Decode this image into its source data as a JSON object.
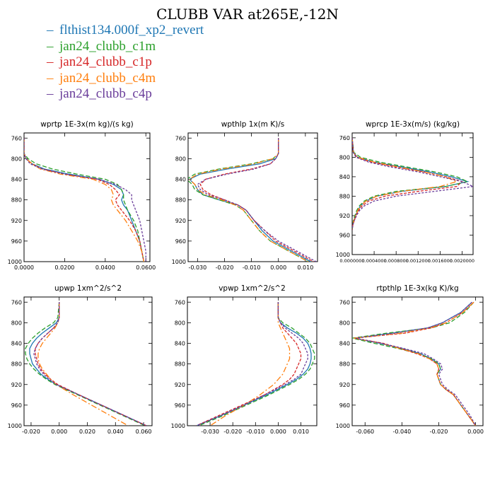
{
  "title": "CLUBB VAR at265E,-12N",
  "legend": [
    {
      "label": "flthist134.000f_xp2_revert",
      "color": "#1f77b4"
    },
    {
      "label": "jan24_clubb_c1m",
      "color": "#2ca02c"
    },
    {
      "label": "jan24_clubb_c1p",
      "color": "#d62728"
    },
    {
      "label": "jan24_clubb_c4m",
      "color": "#ff7f0e"
    },
    {
      "label": "jan24_clubb_c4p",
      "color": "#6a3d9a"
    }
  ],
  "chart_data": [
    {
      "type": "line",
      "title": "wprtp  1E-3x(m kg)/(s kg)",
      "xlim": [
        0,
        0.062
      ],
      "ylim": [
        1000,
        750
      ],
      "xticks": [
        0,
        0.02,
        0.04,
        0.06
      ],
      "xtick_labels": [
        "0.0000",
        "0.0200",
        "0.0400",
        "0.0600"
      ],
      "yticks": [
        760,
        800,
        840,
        880,
        920,
        960,
        1000
      ],
      "ytick_labels": [
        "760",
        "800",
        "840",
        "880",
        "920",
        "960",
        "1000"
      ],
      "y": [
        760,
        790,
        800,
        810,
        820,
        830,
        840,
        850,
        860,
        870,
        880,
        890,
        900,
        920,
        940,
        960,
        980,
        1000
      ],
      "series": [
        {
          "name": "flthist134.000f_xp2_revert",
          "x": [
            0.0,
            0.0,
            0.001,
            0.004,
            0.01,
            0.022,
            0.037,
            0.044,
            0.048,
            0.049,
            0.048,
            0.049,
            0.051,
            0.053,
            0.055,
            0.057,
            0.058,
            0.059
          ]
        },
        {
          "name": "jan24_clubb_c1m",
          "x": [
            0.0,
            0.0,
            0.002,
            0.006,
            0.014,
            0.026,
            0.04,
            0.046,
            0.048,
            0.049,
            0.049,
            0.05,
            0.051,
            0.054,
            0.056,
            0.057,
            0.058,
            0.059
          ]
        },
        {
          "name": "jan24_clubb_c1p",
          "x": [
            0.0,
            0.0,
            0.001,
            0.004,
            0.009,
            0.02,
            0.036,
            0.042,
            0.045,
            0.047,
            0.045,
            0.046,
            0.048,
            0.052,
            0.055,
            0.057,
            0.058,
            0.059
          ]
        },
        {
          "name": "jan24_clubb_c4m",
          "x": [
            0.0,
            0.0,
            0.001,
            0.004,
            0.008,
            0.018,
            0.034,
            0.04,
            0.043,
            0.044,
            0.043,
            0.044,
            0.046,
            0.05,
            0.053,
            0.056,
            0.058,
            0.059
          ]
        },
        {
          "name": "jan24_clubb_c4p",
          "x": [
            0.0,
            0.0,
            0.001,
            0.003,
            0.009,
            0.02,
            0.037,
            0.045,
            0.05,
            0.053,
            0.053,
            0.054,
            0.055,
            0.057,
            0.058,
            0.059,
            0.06,
            0.06
          ]
        }
      ]
    },
    {
      "type": "line",
      "title": "wpthlp  1x(m K)/s",
      "xlim": [
        -0.0335,
        0.0145
      ],
      "ylim": [
        1000,
        750
      ],
      "xticks": [
        -0.03,
        -0.02,
        -0.01,
        0,
        0.01
      ],
      "xtick_labels": [
        "-0.030",
        "-0.020",
        "-0.010",
        "0.000",
        "0.010"
      ],
      "yticks": [
        760,
        800,
        840,
        880,
        920,
        960,
        1000
      ],
      "ytick_labels": [
        "760",
        "800",
        "840",
        "880",
        "920",
        "960",
        "1000"
      ],
      "y": [
        760,
        790,
        800,
        810,
        820,
        830,
        840,
        850,
        860,
        870,
        880,
        890,
        900,
        920,
        940,
        960,
        980,
        1000
      ],
      "series": [
        {
          "name": "flthist134.000f_xp2_revert",
          "x": [
            0.0,
            0.0,
            -0.001,
            -0.007,
            -0.019,
            -0.029,
            -0.033,
            -0.031,
            -0.03,
            -0.028,
            -0.022,
            -0.015,
            -0.012,
            -0.009,
            -0.006,
            -0.002,
            0.005,
            0.012
          ]
        },
        {
          "name": "jan24_clubb_c1m",
          "x": [
            0.0,
            0.0,
            -0.002,
            -0.01,
            -0.022,
            -0.031,
            -0.034,
            -0.032,
            -0.031,
            -0.028,
            -0.022,
            -0.016,
            -0.013,
            -0.01,
            -0.007,
            -0.003,
            0.004,
            0.011
          ]
        },
        {
          "name": "jan24_clubb_c1p",
          "x": [
            0.0,
            0.0,
            -0.001,
            -0.003,
            -0.01,
            -0.02,
            -0.027,
            -0.029,
            -0.028,
            -0.025,
            -0.02,
            -0.015,
            -0.012,
            -0.009,
            -0.005,
            -0.001,
            0.006,
            0.013
          ]
        },
        {
          "name": "jan24_clubb_c4m",
          "x": [
            0.0,
            0.0,
            -0.002,
            -0.009,
            -0.021,
            -0.03,
            -0.033,
            -0.031,
            -0.03,
            -0.027,
            -0.021,
            -0.016,
            -0.013,
            -0.01,
            -0.007,
            -0.003,
            0.004,
            0.011
          ]
        },
        {
          "name": "jan24_clubb_c4p",
          "x": [
            0.0,
            0.0,
            -0.001,
            -0.003,
            -0.009,
            -0.019,
            -0.027,
            -0.03,
            -0.029,
            -0.026,
            -0.02,
            -0.015,
            -0.012,
            -0.009,
            -0.005,
            0.0,
            0.007,
            0.014
          ]
        }
      ]
    },
    {
      "type": "line",
      "title": "wprcp  1E-3x(m/s) (kg/kg)",
      "xlim": [
        0,
        0.0022
      ],
      "ylim": [
        1000,
        750
      ],
      "xticks": [
        0,
        0.0004,
        0.0008,
        0.0012,
        0.0016,
        0.002
      ],
      "xtick_labels": [
        "0.0000000",
        "0.0004000",
        "0.0008000",
        "0.0012000",
        "0.0016000",
        "0.0020000"
      ],
      "yticks": [
        760,
        800,
        840,
        880,
        920,
        960,
        1000
      ],
      "ytick_labels": [
        "760",
        "800",
        "840",
        "880",
        "920",
        "960",
        "1000"
      ],
      "y": [
        760,
        790,
        800,
        810,
        820,
        830,
        840,
        850,
        860,
        870,
        880,
        890,
        900,
        910,
        920,
        930,
        940,
        950
      ],
      "series": [
        {
          "name": "flthist134.000f_xp2_revert",
          "x": [
            0.0,
            2e-05,
            0.0001,
            0.0004,
            0.0009,
            0.0014,
            0.0018,
            0.0021,
            0.0017,
            0.0009,
            0.00045,
            0.00025,
            0.00015,
            0.0001,
            6e-05,
            3e-05,
            1e-05,
            0.0
          ]
        },
        {
          "name": "jan24_clubb_c1m",
          "x": [
            0.0,
            3e-05,
            0.00015,
            0.0005,
            0.001,
            0.0015,
            0.0019,
            0.0021,
            0.0017,
            0.0008,
            0.0004,
            0.00022,
            0.00013,
            8e-05,
            5e-05,
            2e-05,
            1e-05,
            0.0
          ]
        },
        {
          "name": "jan24_clubb_c1p",
          "x": [
            0.0,
            2e-05,
            8e-05,
            0.00035,
            0.0008,
            0.0013,
            0.0017,
            0.002,
            0.0019,
            0.0012,
            0.0006,
            0.0003,
            0.00018,
            0.00011,
            7e-05,
            4e-05,
            1e-05,
            0.0
          ]
        },
        {
          "name": "jan24_clubb_c4m",
          "x": [
            0.0,
            2e-05,
            0.0001,
            0.0004,
            0.00085,
            0.0013,
            0.0017,
            0.0019,
            0.0016,
            0.0009,
            0.00045,
            0.00025,
            0.00015,
            0.0001,
            6e-05,
            3e-05,
            1e-05,
            0.0
          ]
        },
        {
          "name": "jan24_clubb_c4p",
          "x": [
            0.0,
            2e-05,
            7e-05,
            0.0003,
            0.0007,
            0.0012,
            0.0016,
            0.002,
            0.0022,
            0.0015,
            0.0008,
            0.0004,
            0.00022,
            0.00013,
            8e-05,
            4e-05,
            1e-05,
            0.0
          ]
        }
      ]
    },
    {
      "type": "line",
      "title": "upwp  1xm^2/s^2",
      "xlim": [
        -0.025,
        0.066
      ],
      "ylim": [
        1000,
        750
      ],
      "xticks": [
        -0.02,
        0,
        0.02,
        0.04,
        0.06
      ],
      "xtick_labels": [
        "-0.020",
        "0.000",
        "0.020",
        "0.040",
        "0.060"
      ],
      "yticks": [
        760,
        800,
        840,
        880,
        920,
        960,
        1000
      ],
      "ytick_labels": [
        "760",
        "800",
        "840",
        "880",
        "920",
        "960",
        "1000"
      ],
      "y": [
        760,
        790,
        800,
        810,
        820,
        830,
        840,
        850,
        860,
        870,
        880,
        890,
        900,
        910,
        920,
        940,
        960,
        980,
        1000
      ],
      "series": [
        {
          "name": "flthist134.000f_xp2_revert",
          "x": [
            0.0,
            0.0,
            -0.002,
            -0.007,
            -0.012,
            -0.016,
            -0.019,
            -0.021,
            -0.021,
            -0.02,
            -0.019,
            -0.016,
            -0.013,
            -0.008,
            -0.002,
            0.014,
            0.03,
            0.046,
            0.062
          ]
        },
        {
          "name": "jan24_clubb_c1m",
          "x": [
            0.0,
            -0.001,
            -0.004,
            -0.01,
            -0.015,
            -0.019,
            -0.022,
            -0.024,
            -0.024,
            -0.023,
            -0.021,
            -0.018,
            -0.014,
            -0.009,
            -0.003,
            0.013,
            0.029,
            0.045,
            0.061
          ]
        },
        {
          "name": "jan24_clubb_c1p",
          "x": [
            0.0,
            0.0,
            -0.001,
            -0.004,
            -0.008,
            -0.012,
            -0.015,
            -0.017,
            -0.017,
            -0.016,
            -0.015,
            -0.013,
            -0.01,
            -0.006,
            -0.001,
            0.014,
            0.03,
            0.046,
            0.062
          ]
        },
        {
          "name": "jan24_clubb_c4m",
          "x": [
            0.0,
            0.0,
            -0.001,
            -0.003,
            -0.006,
            -0.009,
            -0.012,
            -0.014,
            -0.015,
            -0.015,
            -0.014,
            -0.012,
            -0.009,
            -0.006,
            -0.002,
            0.01,
            0.023,
            0.036,
            0.049
          ]
        },
        {
          "name": "jan24_clubb_c4p",
          "x": [
            0.0,
            0.0,
            -0.001,
            -0.004,
            -0.008,
            -0.012,
            -0.015,
            -0.017,
            -0.018,
            -0.017,
            -0.016,
            -0.014,
            -0.011,
            -0.007,
            -0.002,
            0.014,
            0.03,
            0.046,
            0.062
          ]
        }
      ]
    },
    {
      "type": "line",
      "title": "vpwp  1xm^2/s^2",
      "xlim": [
        -0.04,
        0.017
      ],
      "ylim": [
        1000,
        750
      ],
      "xticks": [
        -0.03,
        -0.02,
        -0.01,
        0,
        0.01
      ],
      "xtick_labels": [
        "-0.030",
        "-0.020",
        "-0.010",
        "0.000",
        "0.010"
      ],
      "yticks": [
        760,
        800,
        840,
        880,
        920,
        960,
        1000
      ],
      "ytick_labels": [
        "760",
        "800",
        "840",
        "880",
        "920",
        "960",
        "1000"
      ],
      "y": [
        760,
        790,
        800,
        810,
        820,
        830,
        840,
        850,
        860,
        870,
        880,
        890,
        900,
        910,
        920,
        940,
        960,
        980,
        1000
      ],
      "series": [
        {
          "name": "flthist134.000f_xp2_revert",
          "x": [
            0.0,
            0.0,
            0.001,
            0.004,
            0.008,
            0.011,
            0.013,
            0.014,
            0.0145,
            0.0145,
            0.014,
            0.013,
            0.011,
            0.008,
            0.004,
            -0.005,
            -0.015,
            -0.025,
            -0.036
          ]
        },
        {
          "name": "jan24_clubb_c1m",
          "x": [
            0.0,
            0.0,
            0.002,
            0.006,
            0.009,
            0.012,
            0.014,
            0.015,
            0.016,
            0.016,
            0.015,
            0.014,
            0.012,
            0.009,
            0.005,
            -0.004,
            -0.014,
            -0.024,
            -0.035
          ]
        },
        {
          "name": "jan24_clubb_c1p",
          "x": [
            0.0,
            0.0,
            0.001,
            0.002,
            0.004,
            0.006,
            0.008,
            0.009,
            0.01,
            0.01,
            0.009,
            0.008,
            0.007,
            0.005,
            0.002,
            -0.006,
            -0.016,
            -0.026,
            -0.036
          ]
        },
        {
          "name": "jan24_clubb_c4m",
          "x": [
            0.0,
            0.0,
            0.0,
            0.001,
            0.002,
            0.003,
            0.004,
            0.005,
            0.005,
            0.005,
            0.004,
            0.003,
            0.002,
            0.0,
            -0.002,
            -0.008,
            -0.015,
            -0.023,
            -0.03
          ]
        },
        {
          "name": "jan24_clubb_c4p",
          "x": [
            0.0,
            0.0,
            0.001,
            0.003,
            0.006,
            0.009,
            0.011,
            0.012,
            0.013,
            0.013,
            0.012,
            0.011,
            0.01,
            0.007,
            0.003,
            -0.006,
            -0.015,
            -0.025,
            -0.036
          ]
        }
      ]
    },
    {
      "type": "line",
      "title": "rtpthlp  1E-3x(kg K)/kg",
      "xlim": [
        -0.067,
        0.004
      ],
      "ylim": [
        1000,
        750
      ],
      "xticks": [
        -0.06,
        -0.04,
        -0.02,
        0
      ],
      "xtick_labels": [
        "-0.060",
        "-0.040",
        "-0.020",
        "0.000"
      ],
      "yticks": [
        760,
        800,
        840,
        880,
        920,
        960,
        1000
      ],
      "ytick_labels": [
        "760",
        "800",
        "840",
        "880",
        "920",
        "960",
        "1000"
      ],
      "y": [
        760,
        780,
        800,
        810,
        820,
        830,
        840,
        850,
        860,
        870,
        880,
        890,
        900,
        910,
        920,
        930,
        940,
        960,
        980,
        1000
      ],
      "series": [
        {
          "name": "flthist134.000f_xp2_revert",
          "x": [
            -0.002,
            -0.008,
            -0.018,
            -0.026,
            -0.045,
            -0.066,
            -0.052,
            -0.04,
            -0.03,
            -0.024,
            -0.02,
            -0.019,
            -0.021,
            -0.02,
            -0.019,
            -0.016,
            -0.012,
            -0.008,
            -0.004,
            0.0
          ]
        },
        {
          "name": "jan24_clubb_c1m",
          "x": [
            -0.001,
            -0.006,
            -0.014,
            -0.024,
            -0.048,
            -0.067,
            -0.055,
            -0.042,
            -0.031,
            -0.024,
            -0.02,
            -0.019,
            -0.021,
            -0.02,
            -0.019,
            -0.016,
            -0.012,
            -0.008,
            -0.004,
            0.0
          ]
        },
        {
          "name": "jan24_clubb_c1p",
          "x": [
            -0.001,
            -0.007,
            -0.016,
            -0.024,
            -0.038,
            -0.066,
            -0.05,
            -0.041,
            -0.032,
            -0.025,
            -0.021,
            -0.02,
            -0.021,
            -0.02,
            -0.019,
            -0.016,
            -0.012,
            -0.008,
            -0.004,
            0.0
          ]
        },
        {
          "name": "jan24_clubb_c4m",
          "x": [
            -0.001,
            -0.007,
            -0.016,
            -0.025,
            -0.04,
            -0.066,
            -0.051,
            -0.041,
            -0.031,
            -0.025,
            -0.021,
            -0.02,
            -0.021,
            -0.02,
            -0.019,
            -0.016,
            -0.012,
            -0.008,
            -0.004,
            0.0
          ]
        },
        {
          "name": "jan24_clubb_c4p",
          "x": [
            -0.002,
            -0.008,
            -0.018,
            -0.026,
            -0.044,
            -0.065,
            -0.051,
            -0.039,
            -0.028,
            -0.023,
            -0.019,
            -0.018,
            -0.02,
            -0.019,
            -0.018,
            -0.015,
            -0.011,
            -0.007,
            -0.003,
            0.0
          ]
        }
      ]
    }
  ]
}
